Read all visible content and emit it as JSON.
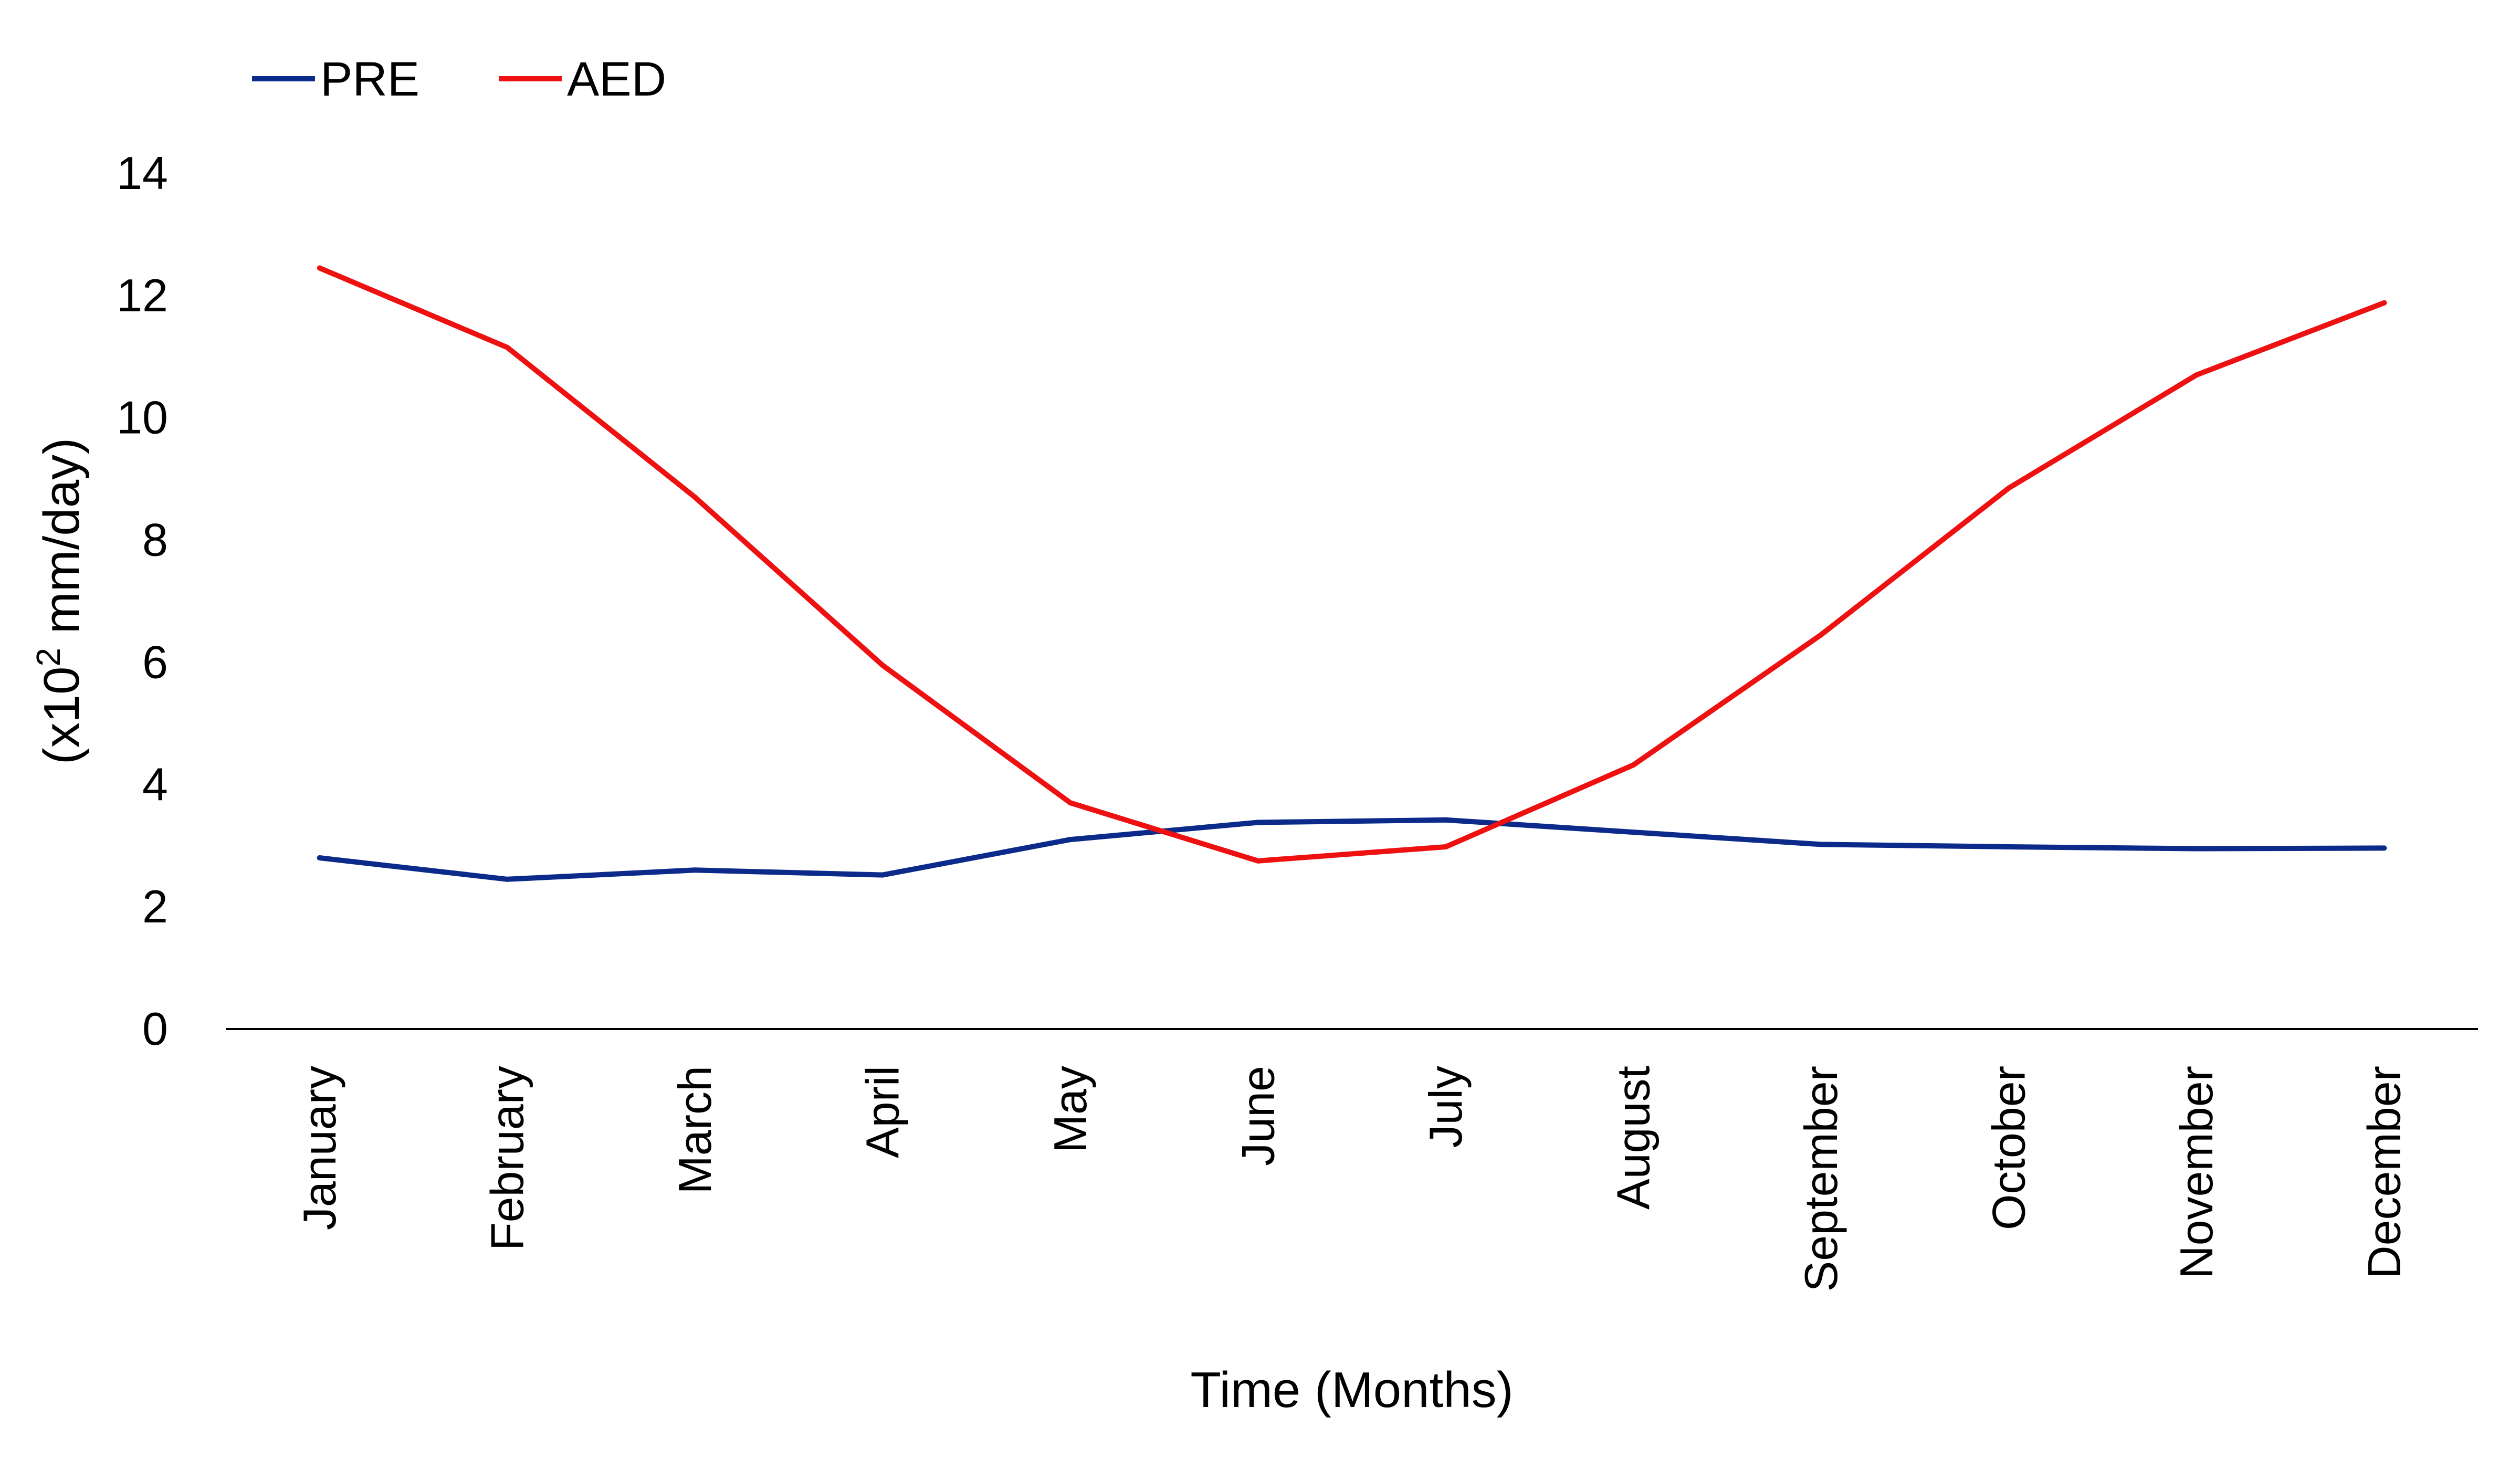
{
  "chart_data": {
    "type": "line",
    "categories": [
      "January",
      "February",
      "March",
      "April",
      "May",
      "June",
      "July",
      "August",
      "September",
      "October",
      "November",
      "December"
    ],
    "series": [
      {
        "name": "PRE",
        "color": "#0b2a8a",
        "values": [
          2.8,
          2.45,
          2.6,
          2.52,
          3.1,
          3.38,
          3.42,
          3.22,
          3.02,
          2.98,
          2.95,
          2.96
        ]
      },
      {
        "name": "AED",
        "color": "#ee1111",
        "values": [
          12.45,
          11.15,
          8.7,
          5.95,
          3.7,
          2.75,
          2.98,
          4.32,
          6.45,
          8.85,
          10.7,
          11.88
        ]
      }
    ],
    "xlabel": "Time (Months)",
    "ylabel": {
      "prefix": "(x10",
      "superscript": "2",
      "suffix": " mm/day)"
    },
    "ylim": [
      0,
      14
    ],
    "yticks": [
      "0",
      "2",
      "4",
      "6",
      "8",
      "10",
      "12",
      "14"
    ],
    "grid": false,
    "legend_position": "top-left"
  }
}
